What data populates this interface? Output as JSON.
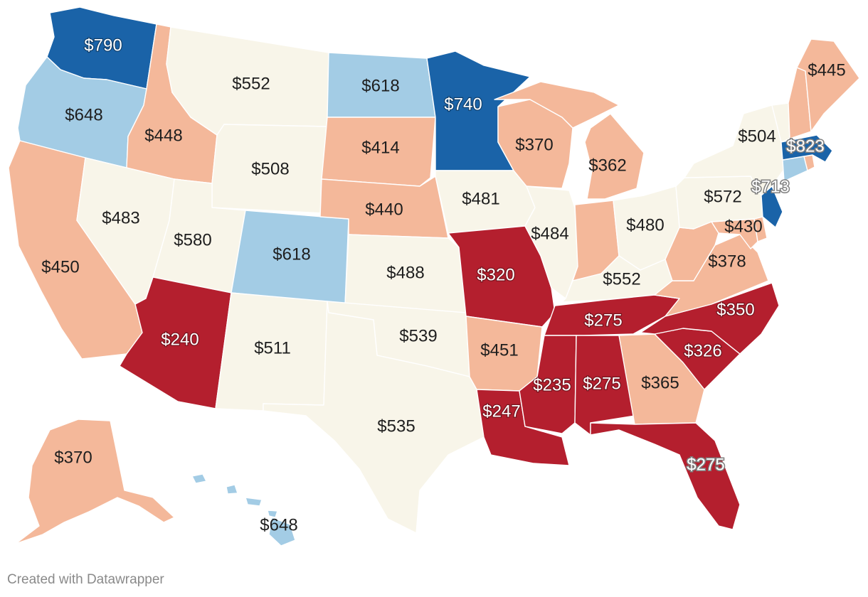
{
  "credit": "Created with Datawrapper",
  "colors": {
    "very_low": "#b41f2e",
    "low": "#f4b89a",
    "mid": "#f8f5e9",
    "high": "#a3cce5",
    "very_high": "#1a63a8"
  },
  "states": [
    {
      "id": "WA",
      "value": "$790",
      "cls": "very_high"
    },
    {
      "id": "OR",
      "value": "$648",
      "cls": "high"
    },
    {
      "id": "CA",
      "value": "$450",
      "cls": "low"
    },
    {
      "id": "ID",
      "value": "$448",
      "cls": "low"
    },
    {
      "id": "NV",
      "value": "$483",
      "cls": "mid"
    },
    {
      "id": "MT",
      "value": "$552",
      "cls": "mid"
    },
    {
      "id": "WY",
      "value": "$508",
      "cls": "mid"
    },
    {
      "id": "UT",
      "value": "$580",
      "cls": "mid"
    },
    {
      "id": "AZ",
      "value": "$240",
      "cls": "very_low"
    },
    {
      "id": "CO",
      "value": "$618",
      "cls": "high"
    },
    {
      "id": "NM",
      "value": "$511",
      "cls": "mid"
    },
    {
      "id": "ND",
      "value": "$618",
      "cls": "high"
    },
    {
      "id": "SD",
      "value": "$414",
      "cls": "low"
    },
    {
      "id": "NE",
      "value": "$440",
      "cls": "low"
    },
    {
      "id": "KS",
      "value": "$488",
      "cls": "mid"
    },
    {
      "id": "OK",
      "value": "$539",
      "cls": "mid"
    },
    {
      "id": "TX",
      "value": "$535",
      "cls": "mid"
    },
    {
      "id": "MN",
      "value": "$740",
      "cls": "very_high"
    },
    {
      "id": "IA",
      "value": "$481",
      "cls": "mid"
    },
    {
      "id": "MO",
      "value": "$320",
      "cls": "very_low"
    },
    {
      "id": "AR",
      "value": "$451",
      "cls": "low"
    },
    {
      "id": "LA",
      "value": "$247",
      "cls": "very_low"
    },
    {
      "id": "WI",
      "value": "$370",
      "cls": "low"
    },
    {
      "id": "IL",
      "value": "$484",
      "cls": "mid"
    },
    {
      "id": "MI",
      "value": "$362",
      "cls": "low"
    },
    {
      "id": "IN",
      "value": "$430",
      "cls": "low"
    },
    {
      "id": "OH",
      "value": "$480",
      "cls": "mid"
    },
    {
      "id": "KY",
      "value": "$552",
      "cls": "mid"
    },
    {
      "id": "TN",
      "value": "$275",
      "cls": "very_low"
    },
    {
      "id": "MS",
      "value": "$235",
      "cls": "very_low"
    },
    {
      "id": "AL",
      "value": "$275",
      "cls": "very_low"
    },
    {
      "id": "GA",
      "value": "$365",
      "cls": "low"
    },
    {
      "id": "FL",
      "value": "$275",
      "cls": "very_low"
    },
    {
      "id": "SC",
      "value": "$326",
      "cls": "very_low"
    },
    {
      "id": "NC",
      "value": "$350",
      "cls": "very_low"
    },
    {
      "id": "VA",
      "value": "$378",
      "cls": "low"
    },
    {
      "id": "WV",
      "value": "",
      "cls": "low"
    },
    {
      "id": "MD",
      "value": "",
      "cls": "low"
    },
    {
      "id": "DE",
      "value": "",
      "cls": "low"
    },
    {
      "id": "PA",
      "value": "$572",
      "cls": "mid"
    },
    {
      "id": "NY",
      "value": "$504",
      "cls": "mid"
    },
    {
      "id": "NJ",
      "value": "$713",
      "cls": "very_high"
    },
    {
      "id": "CT",
      "value": "",
      "cls": "high"
    },
    {
      "id": "RI",
      "value": "",
      "cls": "low"
    },
    {
      "id": "MA",
      "value": "$823",
      "cls": "very_high"
    },
    {
      "id": "VT",
      "value": "",
      "cls": "mid"
    },
    {
      "id": "NH",
      "value": "",
      "cls": "low"
    },
    {
      "id": "ME",
      "value": "$445",
      "cls": "low"
    },
    {
      "id": "AK",
      "value": "$370",
      "cls": "low"
    },
    {
      "id": "HI",
      "value": "$648",
      "cls": "high"
    }
  ]
}
